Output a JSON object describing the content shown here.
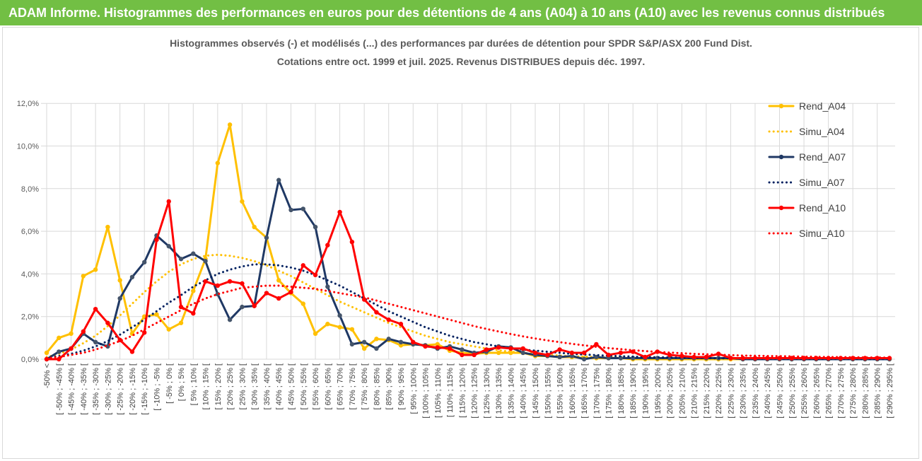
{
  "banner": {
    "text": "ADAM Informe. Histogrammes des performances en euros pour des détentions de 4 ans (A04) à 10 ans (A10) avec les revenus connus distribués"
  },
  "chart_data": {
    "type": "line",
    "title": "Histogrammes observés (-) et modélisés (...) des performances par durées de détention pour SPDR S&P/ASX 200 Fund Dist.",
    "subtitle": "Cotations entre oct. 1999 et juil. 2025. Revenus DISTRIBUES depuis déc. 1997.",
    "xlabel": "",
    "ylabel": "",
    "ylim": [
      0,
      12
    ],
    "yticks": [
      "0,0%",
      "2,0%",
      "4,0%",
      "6,0%",
      "8,0%",
      "10,0%",
      "12,0%"
    ],
    "grid": true,
    "legend_position": "right",
    "categories": [
      "-50% <",
      "[ -50% ; -45% [",
      "[ -45% ; -40% [",
      "[ -40% ; -35% [",
      "[ -35% ; -30% [",
      "[ -30% ; -25% [",
      "[ -25% ; -20% [",
      "[ -20% ; -15% [",
      "[ -15% ; -10% [",
      "[ -10% ; -5% [",
      "[ -5% ; 0% [",
      "[ 0% ; 5% [",
      "[ 5% ; 10% [",
      "[ 10% ; 15% [",
      "[ 15% ; 20% [",
      "[ 20% ; 25% [",
      "[ 25% ; 30% [",
      "[ 30% ; 35% [",
      "[ 35% ; 40% [",
      "[ 40% ; 45% [",
      "[ 45% ; 50% [",
      "[ 50% ; 55% [",
      "[ 55% ; 60% [",
      "[ 60% ; 65% [",
      "[ 65% ; 70% [",
      "[ 70% ; 75% [",
      "[ 75% ; 80% [",
      "[ 80% ; 85% [",
      "[ 85% ; 90% [",
      "[ 90% ; 95% [",
      "[ 95% ; 100% [",
      "[ 100% ; 105% [",
      "[ 105% ; 110% [",
      "[ 110% ; 115% [",
      "[ 115% ; 120% [",
      "[ 120% ; 125% [",
      "[ 125% ; 130% [",
      "[ 130% ; 135% [",
      "[ 135% ; 140% [",
      "[ 140% ; 145% [",
      "[ 145% ; 150% [",
      "[ 150% ; 155% [",
      "[ 155% ; 160% [",
      "[ 160% ; 165% [",
      "[ 165% ; 170% [",
      "[ 170% ; 175% [",
      "[ 175% ; 180% [",
      "[ 180% ; 185% [",
      "[ 185% ; 190% [",
      "[ 190% ; 195% [",
      "[ 195% ; 200% [",
      "[ 200% ; 205% [",
      "[ 205% ; 210% [",
      "[ 210% ; 215% [",
      "[ 215% ; 220% [",
      "[ 220% ; 225% [",
      "[ 225% ; 230% [",
      "[ 230% ; 235% [",
      "[ 235% ; 240% [",
      "[ 240% ; 245% [",
      "[ 245% ; 250% [",
      "[ 250% ; 255% [",
      "[ 255% ; 260% [",
      "[ 260% ; 265% [",
      "[ 265% ; 270% [",
      "[ 270% ; 275% [",
      "[ 275% ; 280% [",
      "[ 280% ; 285% [",
      "[ 285% ; 290% [",
      "[ 290% ; 295% ["
    ],
    "series": [
      {
        "name": "Rend_A04",
        "style": "solid-marker",
        "color": "#ffc000",
        "values": [
          0.3,
          1.0,
          1.2,
          3.9,
          4.2,
          6.2,
          3.7,
          1.2,
          2.0,
          2.1,
          1.4,
          1.7,
          3.2,
          4.7,
          9.2,
          11.0,
          7.4,
          6.2,
          5.7,
          3.7,
          3.1,
          2.6,
          1.2,
          1.65,
          1.5,
          1.4,
          0.5,
          0.95,
          0.9,
          0.65,
          0.7,
          0.65,
          0.7,
          0.4,
          0.3,
          0.25,
          0.3,
          0.3,
          0.3,
          0.3,
          0.15,
          0.15,
          0.1,
          0.1,
          0.05,
          0.05,
          0.05,
          0.05,
          0.0,
          0.0,
          0.0,
          0.0,
          0.0,
          0.0,
          0.0,
          0.0,
          0.0,
          0.0,
          0.0,
          0.0,
          0.0,
          0.0,
          0.0,
          0.0,
          0.0,
          0.0,
          0.0,
          0.0,
          0.0,
          0.0
        ]
      },
      {
        "name": "Simu_A04",
        "style": "dotted",
        "color": "#ffc000",
        "values": [
          0.1,
          0.25,
          0.45,
          0.75,
          1.1,
          1.55,
          2.05,
          2.6,
          3.15,
          3.65,
          4.1,
          4.45,
          4.7,
          4.85,
          4.9,
          4.85,
          4.75,
          4.6,
          4.4,
          4.15,
          3.9,
          3.6,
          3.3,
          3.0,
          2.7,
          2.45,
          2.2,
          1.95,
          1.7,
          1.5,
          1.3,
          1.1,
          0.95,
          0.8,
          0.7,
          0.6,
          0.5,
          0.42,
          0.35,
          0.3,
          0.25,
          0.2,
          0.17,
          0.14,
          0.12,
          0.1,
          0.08,
          0.06,
          0.05,
          0.04,
          0.03,
          0.03,
          0.02,
          0.02,
          0.01,
          0.01,
          0.01,
          0.01,
          0.0,
          0.0,
          0.0,
          0.0,
          0.0,
          0.0,
          0.0,
          0.0,
          0.0,
          0.0,
          0.0,
          0.0
        ]
      },
      {
        "name": "Rend_A07",
        "style": "solid-marker",
        "color": "#1f3864",
        "values": [
          0.0,
          0.35,
          0.5,
          1.2,
          0.8,
          0.6,
          2.85,
          3.85,
          4.55,
          5.8,
          5.3,
          4.7,
          4.95,
          4.6,
          3.05,
          1.85,
          2.45,
          2.5,
          5.7,
          8.4,
          7.0,
          7.05,
          6.2,
          3.4,
          2.05,
          0.7,
          0.8,
          0.5,
          0.95,
          0.8,
          0.7,
          0.65,
          0.5,
          0.6,
          0.45,
          0.3,
          0.35,
          0.6,
          0.55,
          0.3,
          0.2,
          0.15,
          0.1,
          0.15,
          0.0,
          0.1,
          0.05,
          0.05,
          0.05,
          0.05,
          0.05,
          0.05,
          0.05,
          0.05,
          0.05,
          0.05,
          0.05,
          0.0,
          0.0,
          0.0,
          0.0,
          0.0,
          0.0,
          0.0,
          0.0,
          0.0,
          0.0,
          0.0,
          0.0,
          0.0
        ]
      },
      {
        "name": "Simu_A07",
        "style": "dotted",
        "color": "#002060",
        "values": [
          0.05,
          0.15,
          0.25,
          0.4,
          0.6,
          0.85,
          1.15,
          1.5,
          1.85,
          2.25,
          2.65,
          3.0,
          3.4,
          3.7,
          4.0,
          4.2,
          4.35,
          4.45,
          4.45,
          4.4,
          4.3,
          4.15,
          3.95,
          3.7,
          3.45,
          3.15,
          2.85,
          2.55,
          2.25,
          2.0,
          1.75,
          1.5,
          1.3,
          1.1,
          0.95,
          0.8,
          0.7,
          0.6,
          0.52,
          0.45,
          0.4,
          0.35,
          0.3,
          0.25,
          0.22,
          0.19,
          0.16,
          0.14,
          0.12,
          0.1,
          0.09,
          0.08,
          0.07,
          0.06,
          0.05,
          0.04,
          0.04,
          0.03,
          0.03,
          0.02,
          0.02,
          0.02,
          0.01,
          0.01,
          0.01,
          0.01,
          0.01,
          0.0,
          0.0,
          0.0
        ]
      },
      {
        "name": "Rend_A10",
        "style": "solid-marker",
        "color": "#ff0000",
        "values": [
          0.0,
          0.0,
          0.5,
          1.3,
          2.35,
          1.7,
          0.9,
          0.35,
          1.25,
          5.6,
          7.4,
          2.45,
          2.15,
          3.65,
          3.45,
          3.65,
          3.55,
          2.5,
          3.1,
          2.85,
          3.15,
          4.4,
          3.95,
          5.35,
          6.9,
          5.5,
          2.8,
          2.2,
          1.85,
          1.65,
          0.8,
          0.6,
          0.55,
          0.5,
          0.2,
          0.2,
          0.45,
          0.55,
          0.5,
          0.5,
          0.3,
          0.2,
          0.45,
          0.3,
          0.3,
          0.7,
          0.2,
          0.3,
          0.35,
          0.1,
          0.35,
          0.2,
          0.15,
          0.1,
          0.1,
          0.25,
          0.05,
          0.05,
          0.05,
          0.05,
          0.05,
          0.05,
          0.05,
          0.05,
          0.05,
          0.05,
          0.05,
          0.05,
          0.05,
          0.05
        ]
      },
      {
        "name": "Simu_A10",
        "style": "dotted",
        "color": "#ff0000",
        "values": [
          0.05,
          0.1,
          0.2,
          0.3,
          0.45,
          0.65,
          0.85,
          1.1,
          1.4,
          1.7,
          2.0,
          2.3,
          2.6,
          2.85,
          3.05,
          3.2,
          3.35,
          3.4,
          3.45,
          3.45,
          3.4,
          3.35,
          3.3,
          3.2,
          3.1,
          3.0,
          2.9,
          2.75,
          2.6,
          2.45,
          2.3,
          2.15,
          2.0,
          1.85,
          1.7,
          1.55,
          1.42,
          1.3,
          1.18,
          1.07,
          0.97,
          0.88,
          0.8,
          0.72,
          0.65,
          0.58,
          0.52,
          0.47,
          0.42,
          0.38,
          0.34,
          0.31,
          0.28,
          0.25,
          0.23,
          0.21,
          0.19,
          0.17,
          0.16,
          0.15,
          0.14,
          0.13,
          0.12,
          0.11,
          0.1,
          0.1,
          0.09,
          0.08,
          0.08,
          0.07
        ]
      }
    ]
  }
}
